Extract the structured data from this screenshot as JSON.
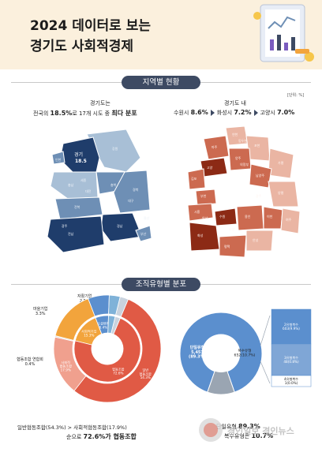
{
  "header": {
    "title_line1": "2024 데이터로 보는",
    "title_line2": "경기도 사회적경제"
  },
  "section_region": {
    "label": "지역별 현황",
    "unit": "[단위: %]",
    "caption_left_title": "경기도는",
    "caption_left_pre": "전국의 ",
    "caption_left_value": "18.5%",
    "caption_left_mid": "로 17개 시도 중 ",
    "caption_left_strong": "최다 분포",
    "caption_right_title": "경기도 내",
    "rank": [
      {
        "name": "수원시",
        "value": "8.6%"
      },
      {
        "name": "화성시",
        "value": "7.2%"
      },
      {
        "name": "고양시",
        "value": "7.0%"
      }
    ],
    "map_left_highlight": "경기",
    "map_left_value": "18.5",
    "map_left_labels": [
      "충북",
      "충남",
      "대전",
      "세종",
      "전북",
      "경북",
      "대구",
      "경남",
      "전남",
      "광주",
      "부산",
      "울산",
      "인천",
      "강원"
    ],
    "map_right_labels": [
      "연천",
      "파주",
      "양주",
      "포천",
      "동두천",
      "가평",
      "고양",
      "의정부",
      "남양주",
      "양평",
      "김포",
      "부천",
      "시흥",
      "안산",
      "화성",
      "수원",
      "용인",
      "이천",
      "여주",
      "평택",
      "안성",
      "오산",
      "광주"
    ],
    "colors": {
      "map_dark": "#1f3d6b",
      "map_mid": "#6e8fb5",
      "map_light": "#a8bfd6",
      "map_right_dark": "#8c2a15",
      "map_right_mid": "#cc6a50",
      "map_right_light": "#eab5a3"
    }
  },
  "section_type": {
    "label": "조직유형별 분포",
    "outer_labels": [
      {
        "name": "자활기업",
        "value": "2.5%"
      },
      {
        "name": "마을기업",
        "value": "3.3%"
      },
      {
        "name": "협동조합 연합회",
        "value": "0.4%"
      }
    ],
    "caption_left_line1": "일반협동조합(54.3%) > 사회적협동조합(17.9%)",
    "caption_left_line2_pre": "순으로 ",
    "caption_left_line2_strong": "72.6%가 협동조합",
    "caption_right_line1_pre": "단일유형 ",
    "caption_right_line1_value": "89.3%",
    "caption_right_line2_pre": "복수유형은 ",
    "caption_right_line2_value": "10.7%",
    "watermark": "경인일보 경인뉴스",
    "colors": {
      "coop": "#e05a45",
      "coop_light": "#f0a08e",
      "social": "#f2a43c",
      "social2": "#5b8fce",
      "single": "#5b8fce",
      "multi": "#9aa5b2"
    }
  },
  "chart_data": [
    {
      "type": "pie",
      "title": "",
      "rings": [
        {
          "name": "inner",
          "slices": [
            {
              "label": "협동조합",
              "value": 72.6,
              "text": "협동조합\n72.6%"
            },
            {
              "label": "사회적기업",
              "value": 15.3,
              "text": "사회적기업\n15.3%"
            },
            {
              "label": "소셜벤처",
              "value": 6.4,
              "text": "소셜벤처\n6.4%"
            },
            {
              "label": "마을기업",
              "value": 3.3,
              "text": ""
            },
            {
              "label": "자활기업",
              "value": 2.5,
              "text": ""
            }
          ]
        },
        {
          "name": "outer",
          "slices": [
            {
              "label": "일반 협동조합",
              "value": 54.3,
              "text": "일반\n협동조합\n54.3%"
            },
            {
              "label": "사회적 협동조합",
              "value": 17.9,
              "text": "사회적\n협동조합\n17.9%"
            },
            {
              "label": "협동조합 연합회",
              "value": 0.4,
              "text": ""
            },
            {
              "label": "사회적기업",
              "value": 15.3,
              "text": ""
            },
            {
              "label": "소셜벤처",
              "value": 6.4,
              "text": ""
            },
            {
              "label": "마을기업",
              "value": 3.3,
              "text": ""
            },
            {
              "label": "자활기업",
              "value": 2.5,
              "text": ""
            }
          ]
        }
      ]
    },
    {
      "type": "pie",
      "title": "",
      "slices": [
        {
          "label": "단일유형",
          "value": 89.3,
          "text": "단일유형\n5,457\n(89.3%)"
        },
        {
          "label": "복수유형",
          "value": 10.7,
          "text": "복수유형\n652(10.7%)"
        }
      ],
      "breakdown": [
        {
          "label": "2유형복수",
          "text": "2유형복수\n603(9.9%)"
        },
        {
          "label": "3유형복수",
          "text": "3유형복수\n48(0.8%)"
        },
        {
          "label": "4유형복수",
          "text": "4유형복수\n1(0.0%)"
        }
      ]
    }
  ]
}
